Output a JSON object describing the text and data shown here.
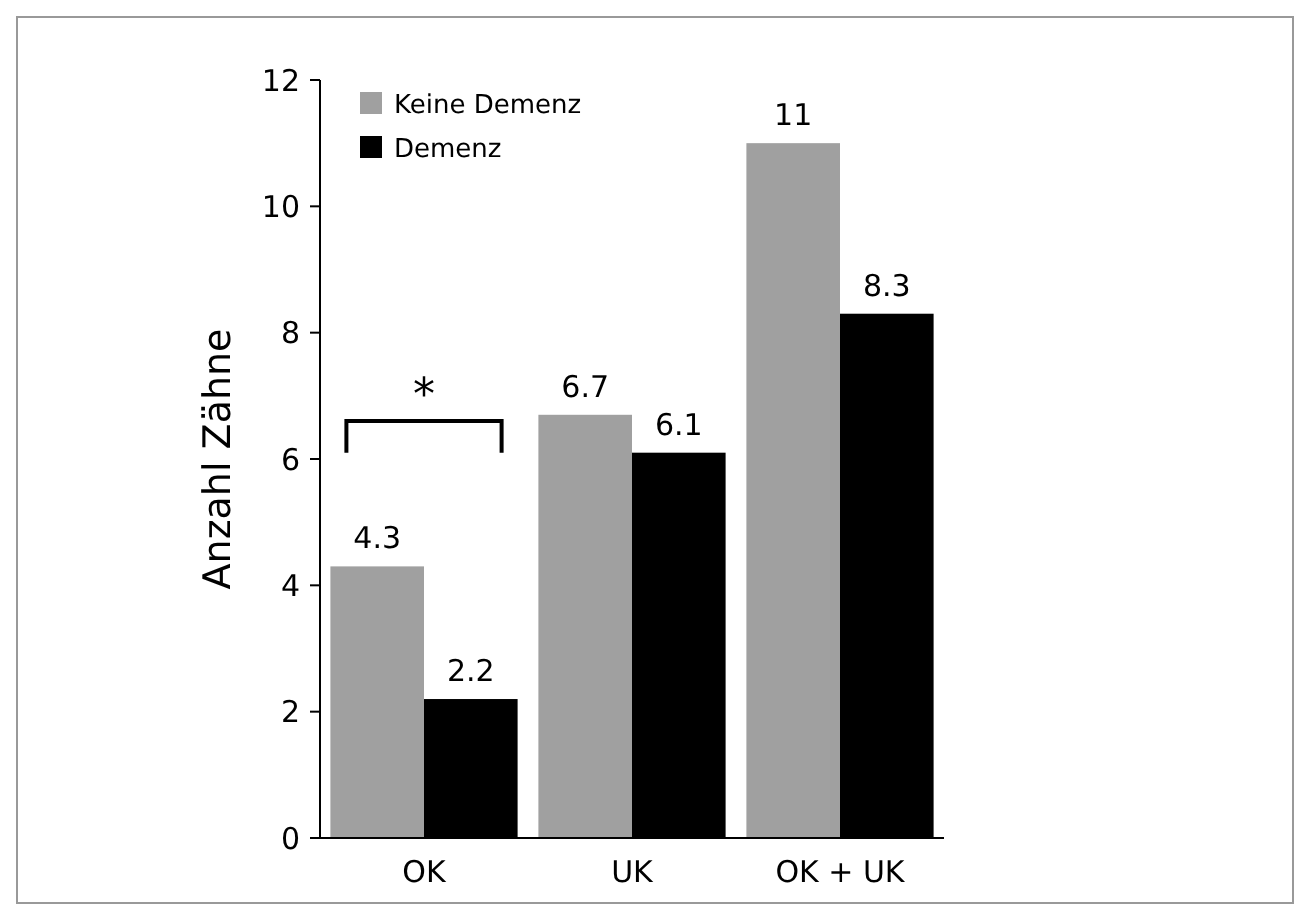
{
  "chart_data": {
    "type": "bar",
    "ylabel": "Anzahl Zähne",
    "categories": [
      "OK",
      "UK",
      "OK + UK"
    ],
    "series": [
      {
        "name": "Keine Demenz",
        "color": "#a0a0a0",
        "values": [
          4.3,
          6.7,
          11
        ]
      },
      {
        "name": "Demenz",
        "color": "#000000",
        "values": [
          2.2,
          6.1,
          8.3
        ]
      }
    ],
    "ylim": [
      0,
      12
    ],
    "yticks": [
      0,
      2,
      4,
      6,
      8,
      10,
      12
    ],
    "data_labels": true,
    "legend": "top left",
    "grid": false,
    "annotations": [
      "*"
    ]
  }
}
